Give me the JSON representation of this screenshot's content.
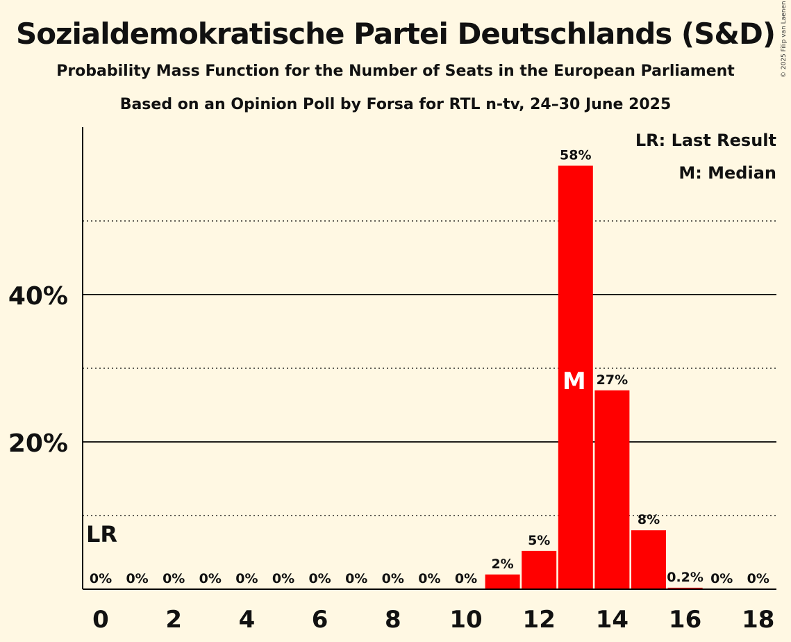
{
  "title": "Sozialdemokratische Partei Deutschlands (S&D)",
  "subtitle": "Probability Mass Function for the Number of Seats in the European Parliament",
  "subtitle2": "Based on an Opinion Poll by Forsa for RTL n-tv, 24–30 June 2025",
  "copyright": "© 2025 Filip van Laenen",
  "legend": {
    "last_result": "LR: Last Result",
    "median": "M: Median"
  },
  "colors": {
    "background": "#fff8e3",
    "bar": "#ff0000",
    "median_text": "#ffffff",
    "axis": "#000000"
  },
  "chart_data": {
    "type": "bar",
    "categories": [
      0,
      1,
      2,
      3,
      4,
      5,
      6,
      7,
      8,
      9,
      10,
      11,
      12,
      13,
      14,
      15,
      16,
      17,
      18
    ],
    "values": [
      0,
      0,
      0,
      0,
      0,
      0,
      0,
      0,
      0,
      0,
      0,
      2,
      5.2,
      57.5,
      27,
      8,
      0.2,
      0,
      0
    ],
    "value_labels": [
      "0%",
      "0%",
      "0%",
      "0%",
      "0%",
      "0%",
      "0%",
      "0%",
      "0%",
      "0%",
      "0%",
      "2%",
      "5%",
      "58%",
      "27%",
      "8%",
      "0.2%",
      "0%",
      "0%"
    ],
    "x_tick_labels": [
      "0",
      "2",
      "4",
      "6",
      "8",
      "10",
      "12",
      "14",
      "16",
      "18"
    ],
    "x_ticks": [
      0,
      2,
      4,
      6,
      8,
      10,
      12,
      14,
      16,
      18
    ],
    "y_tick_labels": [
      "20%",
      "40%"
    ],
    "y_ticks": [
      20,
      40
    ],
    "y_dotted_gridlines": [
      10,
      30,
      50
    ],
    "ylim": [
      0,
      62
    ],
    "xlim": [
      -0.5,
      18.5
    ],
    "last_result": {
      "seat": 0,
      "label": "LR"
    },
    "median": {
      "seat": 13,
      "label": "M"
    },
    "legend_position": "top-right"
  }
}
